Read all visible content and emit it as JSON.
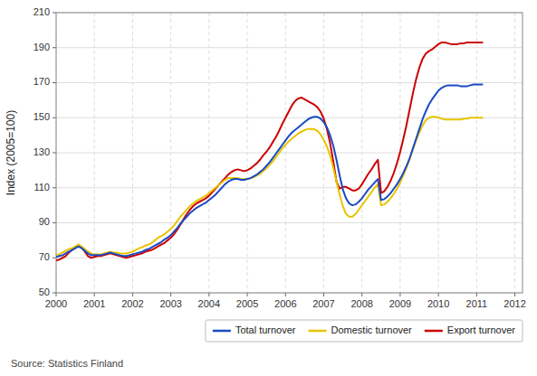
{
  "chart_data": {
    "type": "line",
    "y_label": "Index (2005=100)",
    "source": "Source: Statistics Finland",
    "xlim": [
      2000,
      2012.2
    ],
    "xticks": [
      2000,
      2001,
      2002,
      2003,
      2004,
      2005,
      2006,
      2007,
      2008,
      2009,
      2010,
      2011,
      2012
    ],
    "ylim": [
      50,
      210
    ],
    "yticks": [
      50,
      70,
      90,
      110,
      130,
      150,
      170,
      190,
      210
    ],
    "grid": true,
    "legend": "bottom",
    "x": [
      2000,
      2000.0833,
      2000.1667,
      2000.25,
      2000.3333,
      2000.4167,
      2000.5,
      2000.5833,
      2000.6667,
      2000.75,
      2000.8333,
      2000.9167,
      2001,
      2001.0833,
      2001.1667,
      2001.25,
      2001.3333,
      2001.4167,
      2001.5,
      2001.5833,
      2001.6667,
      2001.75,
      2001.8333,
      2001.9167,
      2002,
      2002.0833,
      2002.1667,
      2002.25,
      2002.3333,
      2002.4167,
      2002.5,
      2002.5833,
      2002.6667,
      2002.75,
      2002.8333,
      2002.9167,
      2003,
      2003.0833,
      2003.1667,
      2003.25,
      2003.3333,
      2003.4167,
      2003.5,
      2003.5833,
      2003.6667,
      2003.75,
      2003.8333,
      2003.9167,
      2004,
      2004.0833,
      2004.1667,
      2004.25,
      2004.3333,
      2004.4167,
      2004.5,
      2004.5833,
      2004.6667,
      2004.75,
      2004.8333,
      2004.9167,
      2005,
      2005.0833,
      2005.1667,
      2005.25,
      2005.3333,
      2005.4167,
      2005.5,
      2005.5833,
      2005.6667,
      2005.75,
      2005.8333,
      2005.9167,
      2006,
      2006.0833,
      2006.1667,
      2006.25,
      2006.3333,
      2006.4167,
      2006.5,
      2006.5833,
      2006.6667,
      2006.75,
      2006.8333,
      2006.9167,
      2007,
      2007.0833,
      2007.1667,
      2007.25,
      2007.3333,
      2007.4167,
      2007.5,
      2007.5833,
      2007.6667,
      2007.75,
      2007.8333,
      2007.9167,
      2008,
      2008.0833,
      2008.1667,
      2008.25,
      2008.3333,
      2008.4167,
      2008.5,
      2008.5833,
      2008.6667,
      2008.75,
      2008.8333,
      2008.9167,
      2009,
      2009.0833,
      2009.1667,
      2009.25,
      2009.3333,
      2009.4167,
      2009.5,
      2009.5833,
      2009.6667,
      2009.75,
      2009.8333,
      2009.9167,
      2010,
      2010.0833,
      2010.1667,
      2010.25,
      2010.3333,
      2010.4167,
      2010.5,
      2010.5833,
      2010.6667,
      2010.75,
      2010.8333,
      2010.9167,
      2011,
      2011.0833,
      2011.1667
    ],
    "series": [
      {
        "name": "Total turnover",
        "color": "#1a4ac4",
        "values": [
          70.5,
          71.0,
          71.5,
          72.5,
          73.5,
          74.5,
          75.5,
          76.5,
          75.5,
          74.0,
          72.5,
          71.5,
          71.5,
          71.5,
          71.5,
          72.0,
          72.5,
          73.0,
          72.5,
          72.0,
          71.5,
          71.0,
          71.0,
          71.5,
          72.0,
          72.5,
          73.0,
          73.5,
          74.5,
          75.0,
          76.0,
          77.0,
          78.0,
          79.0,
          80.5,
          81.5,
          83.0,
          85.0,
          87.0,
          89.5,
          91.5,
          93.5,
          95.5,
          97.0,
          98.5,
          99.5,
          100.5,
          101.5,
          103.0,
          104.5,
          106.0,
          108.0,
          110.0,
          112.0,
          113.5,
          114.5,
          115.0,
          115.0,
          114.5,
          114.5,
          115.0,
          115.5,
          116.5,
          117.5,
          119.0,
          120.5,
          122.5,
          124.5,
          127.0,
          129.5,
          132.0,
          134.5,
          137.0,
          139.5,
          141.5,
          143.0,
          144.5,
          146.0,
          147.5,
          149.0,
          150.0,
          150.5,
          150.5,
          149.5,
          147.5,
          144.5,
          140.0,
          134.0,
          126.0,
          117.0,
          109.0,
          104.0,
          101.0,
          100.0,
          100.5,
          102.0,
          104.0,
          106.5,
          109.0,
          111.0,
          113.0,
          115.0,
          103.0,
          103.5,
          105.0,
          107.0,
          109.5,
          112.0,
          115.0,
          118.5,
          122.5,
          127.0,
          132.5,
          138.0,
          143.5,
          149.0,
          153.5,
          157.5,
          160.5,
          163.0,
          165.5,
          167.0,
          168.0,
          168.5,
          168.5,
          168.5,
          168.5,
          168.0,
          168.0,
          168.0,
          168.5,
          169.0,
          169.0,
          169.0,
          169.0
        ]
      },
      {
        "name": "Domestic turnover",
        "color": "#e8c400",
        "values": [
          71.5,
          72.0,
          73.0,
          74.0,
          75.0,
          75.5,
          76.5,
          77.5,
          76.5,
          75.0,
          73.5,
          72.5,
          72.0,
          72.0,
          72.0,
          72.5,
          73.0,
          73.5,
          73.0,
          73.0,
          72.5,
          72.5,
          72.5,
          73.0,
          73.5,
          74.5,
          75.5,
          76.0,
          77.0,
          77.5,
          78.5,
          80.0,
          81.5,
          82.5,
          83.5,
          85.0,
          86.5,
          88.5,
          91.0,
          93.5,
          95.5,
          97.5,
          99.5,
          101.0,
          102.5,
          103.5,
          104.5,
          105.5,
          107.0,
          108.5,
          110.0,
          111.5,
          113.0,
          114.5,
          115.5,
          115.5,
          115.5,
          115.5,
          115.0,
          115.0,
          115.0,
          115.5,
          116.0,
          117.0,
          118.0,
          119.5,
          121.0,
          123.0,
          125.0,
          127.5,
          130.0,
          132.5,
          134.5,
          136.5,
          138.0,
          139.5,
          141.0,
          142.0,
          143.0,
          143.5,
          143.5,
          143.5,
          142.5,
          140.5,
          137.5,
          133.5,
          128.5,
          121.5,
          113.5,
          106.0,
          99.5,
          95.0,
          93.5,
          93.5,
          95.0,
          97.5,
          100.0,
          102.5,
          105.0,
          107.5,
          110.0,
          112.0,
          100.0,
          100.5,
          102.0,
          104.0,
          106.5,
          109.5,
          113.0,
          117.0,
          121.5,
          126.5,
          132.0,
          137.0,
          141.5,
          145.5,
          148.5,
          150.0,
          150.5,
          150.5,
          150.0,
          149.5,
          149.0,
          149.0,
          149.0,
          149.0,
          149.0,
          149.0,
          149.5,
          149.5,
          150.0,
          150.0,
          150.0,
          150.0,
          150.0
        ]
      },
      {
        "name": "Export turnover",
        "color": "#cc0000",
        "values": [
          68.5,
          69.0,
          70.0,
          71.0,
          73.0,
          74.5,
          76.0,
          77.5,
          76.0,
          73.5,
          71.0,
          70.0,
          70.5,
          71.0,
          71.0,
          71.5,
          72.0,
          72.5,
          72.0,
          71.5,
          71.0,
          70.5,
          70.0,
          70.5,
          71.0,
          71.5,
          72.0,
          72.5,
          73.5,
          74.0,
          74.5,
          75.5,
          76.5,
          77.5,
          78.5,
          80.0,
          81.5,
          83.5,
          86.0,
          89.0,
          92.0,
          95.0,
          97.5,
          99.5,
          101.0,
          102.0,
          103.0,
          104.0,
          105.5,
          107.5,
          109.5,
          111.5,
          113.5,
          115.5,
          117.5,
          119.0,
          120.0,
          120.5,
          120.0,
          119.5,
          120.0,
          121.0,
          122.5,
          124.0,
          126.0,
          128.5,
          130.5,
          133.0,
          136.0,
          139.0,
          142.5,
          146.5,
          150.0,
          153.5,
          157.0,
          159.5,
          161.0,
          161.5,
          160.5,
          159.5,
          158.5,
          157.5,
          156.0,
          153.5,
          149.5,
          143.5,
          135.5,
          125.0,
          113.5,
          109.5,
          110.5,
          110.5,
          109.5,
          108.5,
          108.5,
          109.5,
          112.0,
          115.0,
          118.0,
          120.5,
          123.5,
          126.0,
          107.0,
          108.0,
          110.5,
          114.0,
          118.5,
          124.0,
          130.5,
          138.0,
          146.0,
          155.0,
          164.0,
          172.0,
          178.5,
          183.5,
          186.5,
          188.0,
          189.0,
          190.5,
          192.0,
          193.0,
          193.0,
          192.5,
          192.0,
          192.0,
          192.0,
          192.5,
          192.5,
          193.0,
          193.0,
          193.0,
          193.0,
          193.0,
          193.0
        ]
      }
    ]
  }
}
